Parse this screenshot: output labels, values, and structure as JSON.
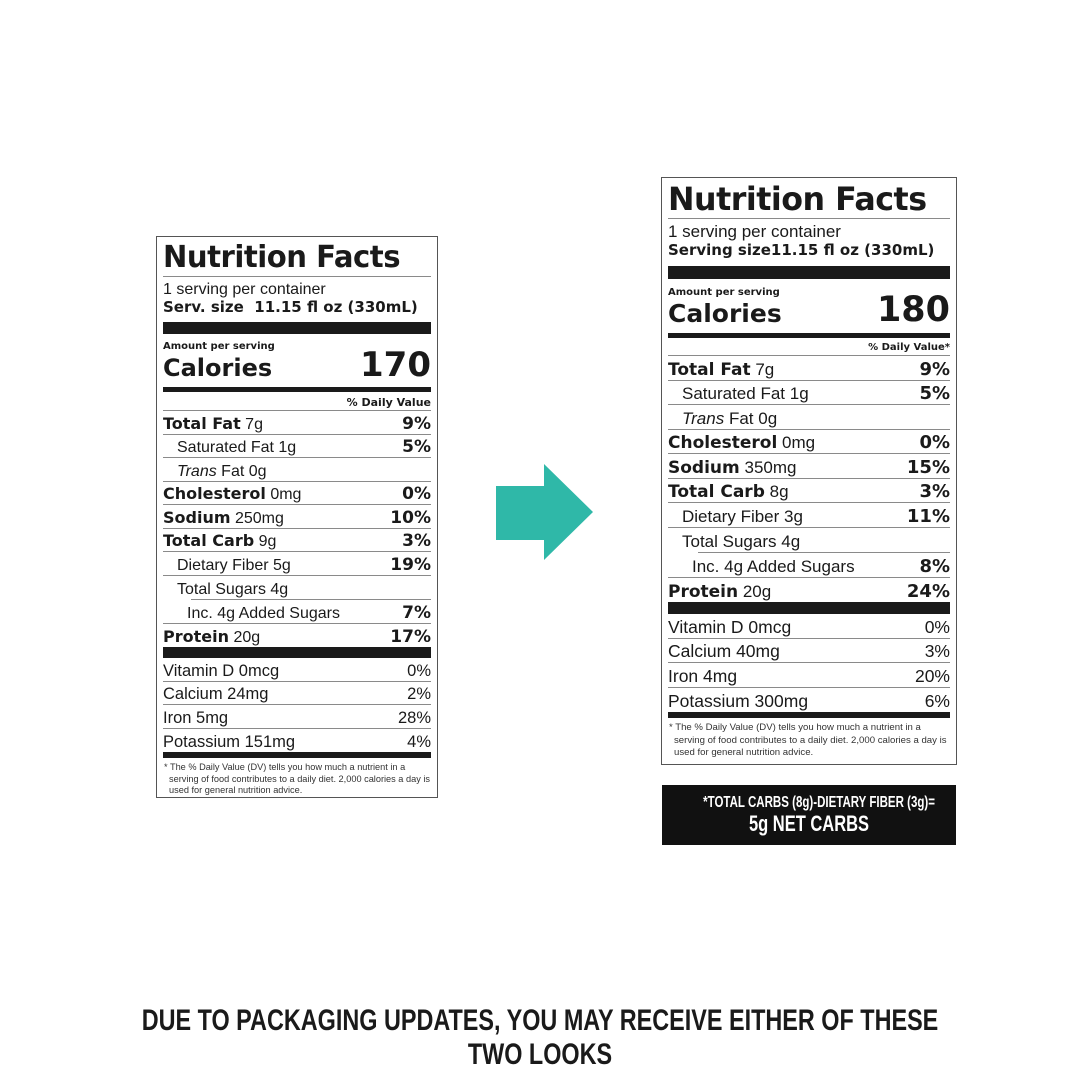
{
  "labels": {
    "old": {
      "title": "Nutrition Facts",
      "servings": "1 serving per container",
      "serving_size_label": "Serv. size",
      "serving_size_value": "11.15 fl oz (330mL)",
      "amount_per_serving": "Amount per serving",
      "calories_label": "Calories",
      "calories_value": "170",
      "dv_header": "% Daily Value",
      "nutrients": [
        {
          "name": "Total Fat",
          "amount": "7g",
          "dv": "9%",
          "bold": true,
          "indent": 0
        },
        {
          "name": "Saturated Fat",
          "amount": "1g",
          "dv": "5%",
          "bold": false,
          "indent": 1
        },
        {
          "name": "Trans",
          "name2": "Fat",
          "amount": "0g",
          "dv": "",
          "bold": false,
          "indent": 1,
          "italic": true
        },
        {
          "name": "Cholesterol",
          "amount": "0mg",
          "dv": "0%",
          "bold": true,
          "indent": 0
        },
        {
          "name": "Sodium",
          "amount": "250mg",
          "dv": "10%",
          "bold": true,
          "indent": 0
        },
        {
          "name": "Total Carb",
          "amount": "9g",
          "dv": "3%",
          "bold": true,
          "indent": 0
        },
        {
          "name": "Dietary Fiber",
          "amount": "5g",
          "dv": "19%",
          "bold": false,
          "indent": 1
        },
        {
          "name": "Total Sugars",
          "amount": "4g",
          "dv": "",
          "bold": false,
          "indent": 1
        },
        {
          "name": "Inc. 4g Added Sugars",
          "amount": "",
          "dv": "7%",
          "bold": false,
          "indent": 2
        },
        {
          "name": "Protein",
          "amount": "20g",
          "dv": "17%",
          "bold": true,
          "indent": 0
        }
      ],
      "vitamins": [
        {
          "name": "Vitamin D 0mcg",
          "dv": "0%"
        },
        {
          "name": "Calcium 24mg",
          "dv": "2%"
        },
        {
          "name": "Iron 5mg",
          "dv": "28%"
        },
        {
          "name": "Potassium 151mg",
          "dv": "4%"
        }
      ],
      "footnote": "* The % Daily Value (DV) tells you how much a nutrient in a serving of food contributes to a daily diet. 2,000 calories a day is used for general nutrition advice."
    },
    "new": {
      "title": "Nutrition Facts",
      "servings": "1 serving per container",
      "serving_size_label": "Serving size",
      "serving_size_value": "11.15 fl oz (330mL)",
      "amount_per_serving": "Amount per serving",
      "calories_label": "Calories",
      "calories_value": "180",
      "dv_header": "% Daily Value*",
      "nutrients": [
        {
          "name": "Total Fat",
          "amount": "7g",
          "dv": "9%",
          "bold": true,
          "indent": 0
        },
        {
          "name": "Saturated Fat",
          "amount": "1g",
          "dv": "5%",
          "bold": false,
          "indent": 1
        },
        {
          "name": "Trans",
          "name2": "Fat",
          "amount": "0g",
          "dv": "",
          "bold": false,
          "indent": 1,
          "italic": true
        },
        {
          "name": "Cholesterol",
          "amount": "0mg",
          "dv": "0%",
          "bold": true,
          "indent": 0
        },
        {
          "name": "Sodium",
          "amount": "350mg",
          "dv": "15%",
          "bold": true,
          "indent": 0
        },
        {
          "name": "Total Carb",
          "amount": "8g",
          "dv": "3%",
          "bold": true,
          "indent": 0
        },
        {
          "name": "Dietary Fiber",
          "amount": "3g",
          "dv": "11%",
          "bold": false,
          "indent": 1
        },
        {
          "name": "Total Sugars",
          "amount": "4g",
          "dv": "",
          "bold": false,
          "indent": 1
        },
        {
          "name": "Inc. 4g Added Sugars",
          "amount": "",
          "dv": "8%",
          "bold": false,
          "indent": 2
        },
        {
          "name": "Protein",
          "amount": "20g",
          "dv": "24%",
          "bold": true,
          "indent": 0
        }
      ],
      "vitamins": [
        {
          "name": "Vitamin D 0mcg",
          "dv": "0%"
        },
        {
          "name": "Calcium 40mg",
          "dv": "3%"
        },
        {
          "name": "Iron 4mg",
          "dv": "20%"
        },
        {
          "name": "Potassium 300mg",
          "dv": "6%"
        }
      ],
      "footnote": "* The % Daily Value (DV) tells you how much a nutrient in a serving of food contributes to a daily diet. 2,000 calories a day is used for general nutrition advice."
    }
  },
  "net_carbs": {
    "line1": "*TOTAL CARBS (8g)-DIETARY FIBER (3g)=",
    "line2": "5g NET CARBS"
  },
  "arrow": {
    "icon": "arrow-right-icon",
    "color": "#2fb8a8"
  },
  "bottom_note": "DUE TO PACKAGING UPDATES, YOU MAY RECEIVE EITHER OF THESE TWO LOOKS"
}
